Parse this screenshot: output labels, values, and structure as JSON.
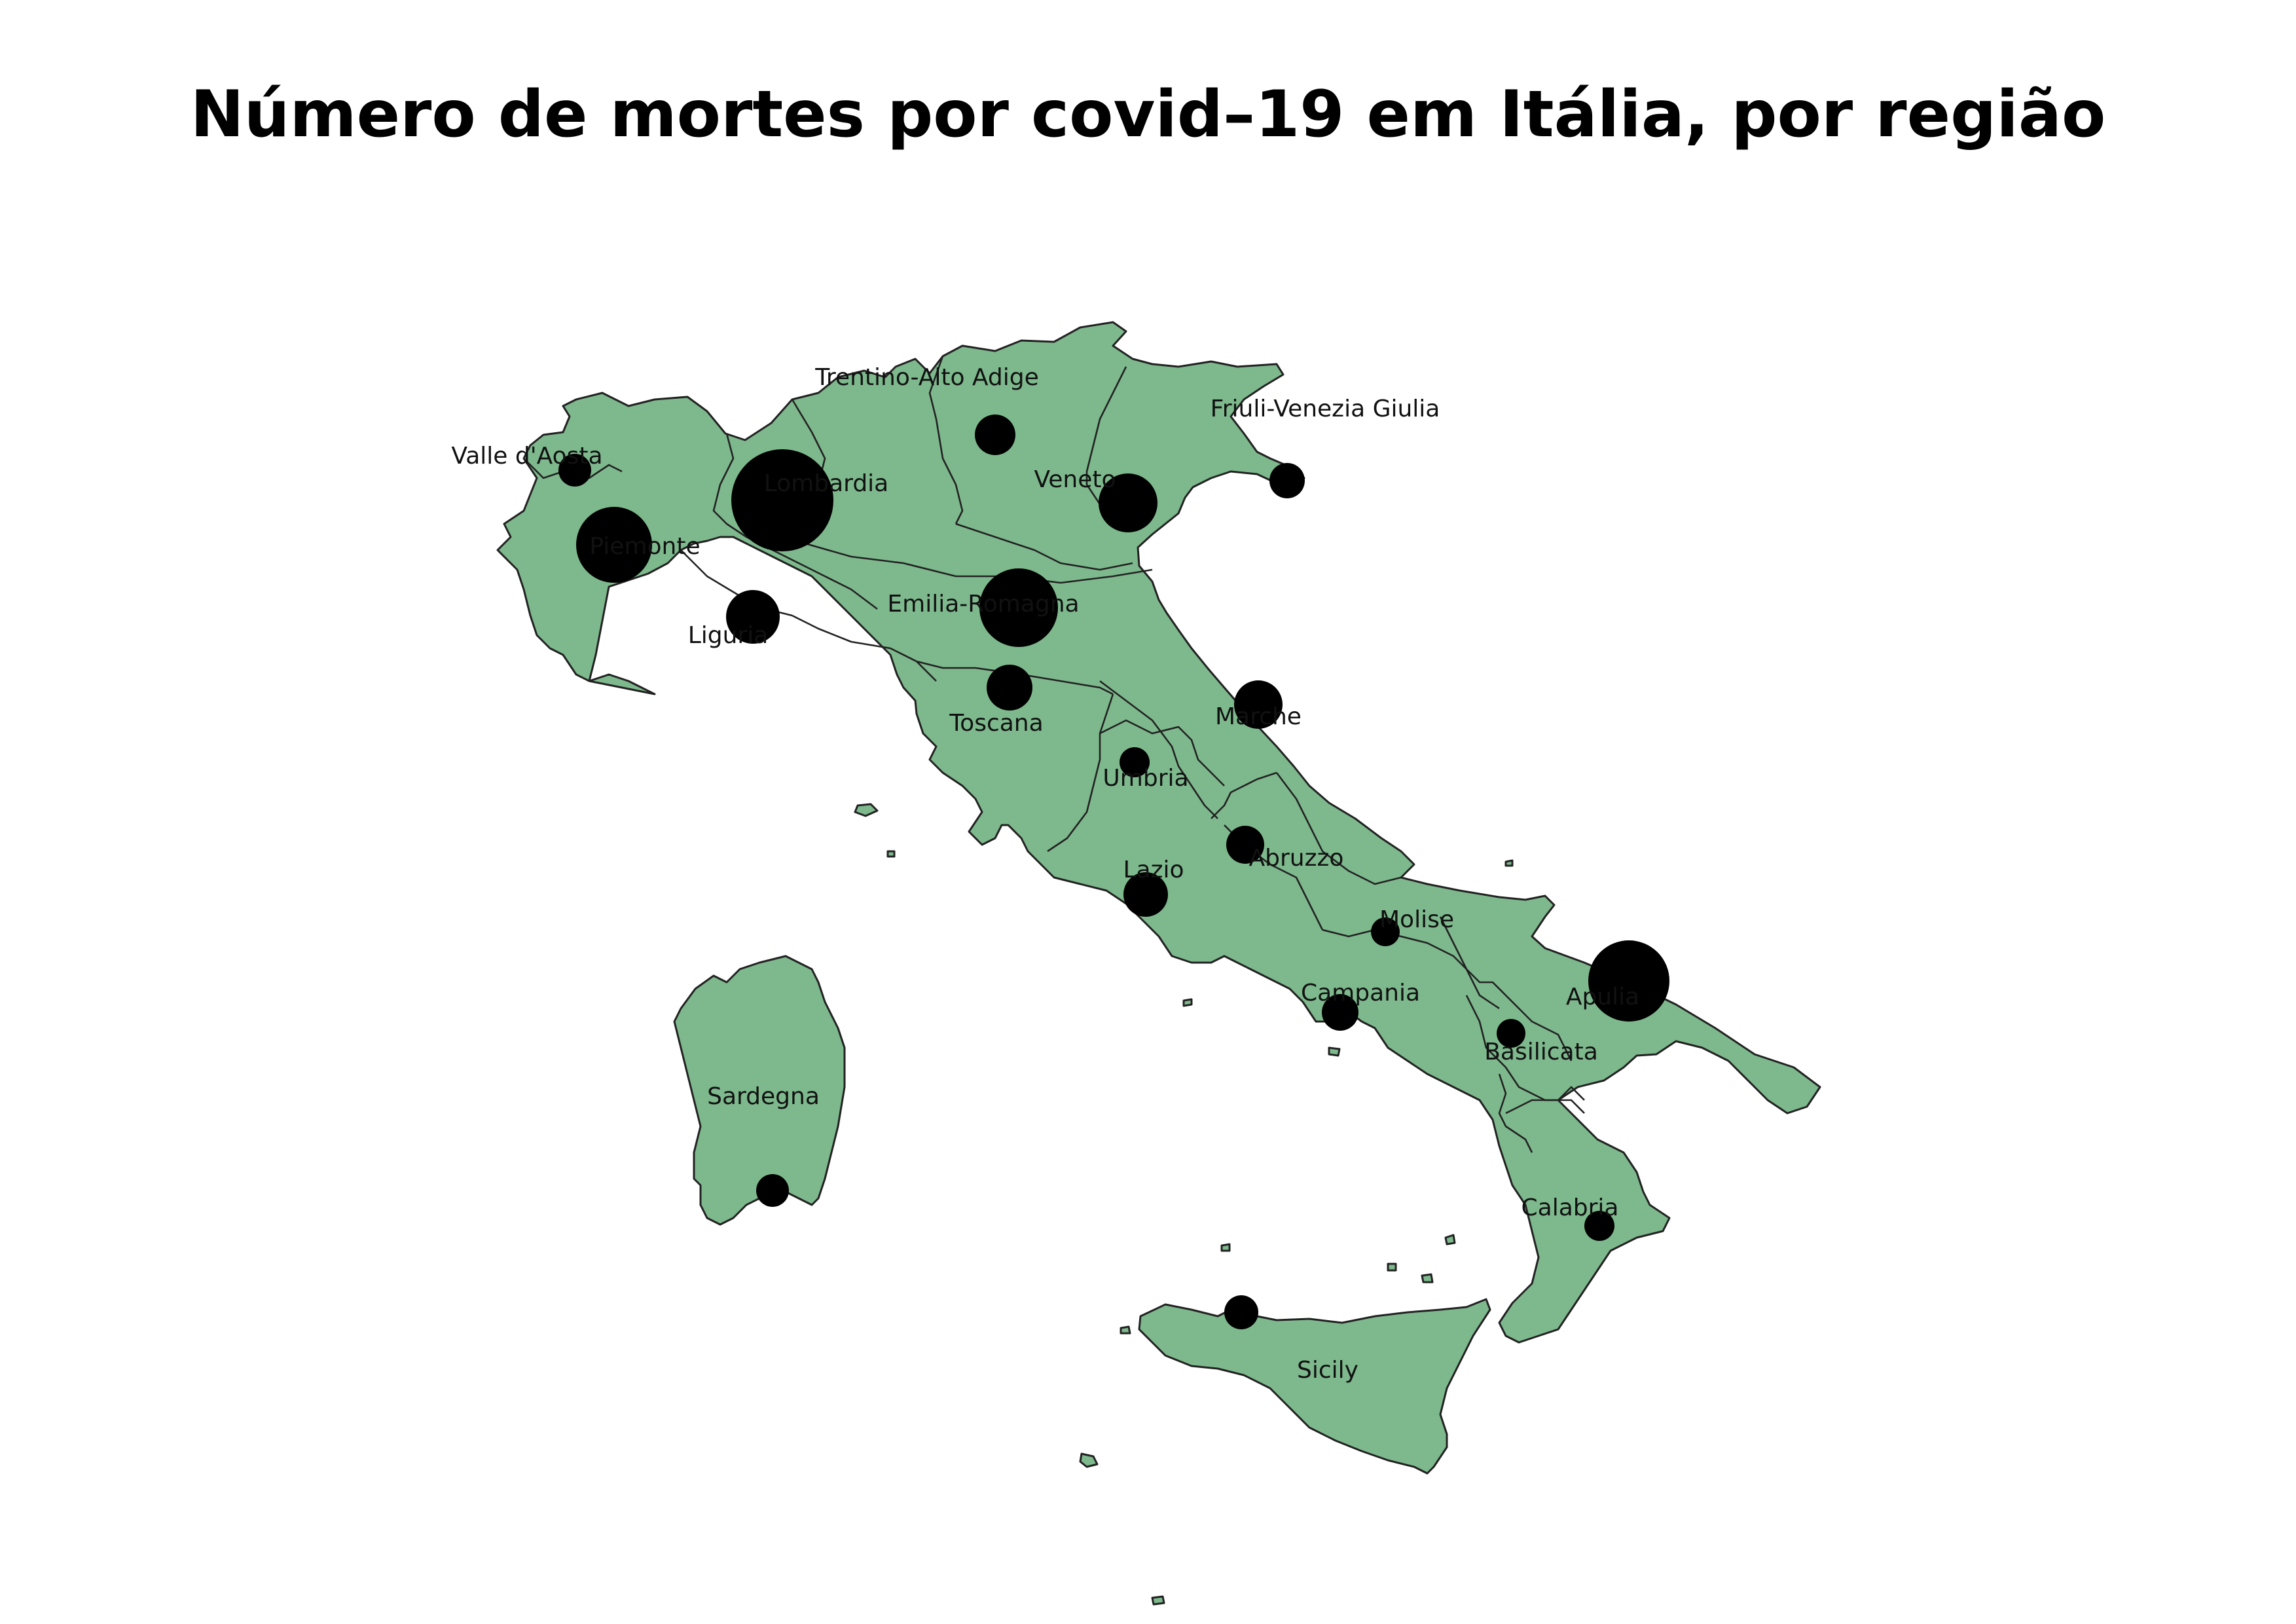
{
  "title": "Número de mortes por covid–19 em Itália, por região",
  "colors": {
    "land": "#7eb98d",
    "border": "#222222",
    "bubble": "#000000"
  },
  "regions": [
    {
      "id": "valle-d-aosta",
      "label": "Valle d'Aosta",
      "relative_size": 0.1
    },
    {
      "id": "piemonte",
      "label": "Piemonte",
      "relative_size": 0.55
    },
    {
      "id": "lombardia",
      "label": "Lombardia",
      "relative_size": 1.0
    },
    {
      "id": "liguria",
      "label": "Liguria",
      "relative_size": 0.28
    },
    {
      "id": "trentino-alto-adige",
      "label": "Trentino-Alto Adige",
      "relative_size": 0.16
    },
    {
      "id": "veneto",
      "label": "Veneto",
      "relative_size": 0.33
    },
    {
      "id": "friuli-venezia-giulia",
      "label": "Friuli-Venezia Giulia",
      "relative_size": 0.12
    },
    {
      "id": "emilia-romagna",
      "label": "Emilia-Romagna",
      "relative_size": 0.6
    },
    {
      "id": "toscana",
      "label": "Toscana",
      "relative_size": 0.2
    },
    {
      "id": "marche",
      "label": "Marche",
      "relative_size": 0.23
    },
    {
      "id": "umbria",
      "label": "Umbria",
      "relative_size": 0.09
    },
    {
      "id": "lazio",
      "label": "Lazio",
      "relative_size": 0.19
    },
    {
      "id": "abruzzo",
      "label": "Abruzzo",
      "relative_size": 0.14
    },
    {
      "id": "molise",
      "label": "Molise",
      "relative_size": 0.08
    },
    {
      "id": "campania",
      "label": "Campania",
      "relative_size": 0.13
    },
    {
      "id": "puglia",
      "label": "Apulia",
      "relative_size": 0.64
    },
    {
      "id": "basilicata",
      "label": "Basilicata",
      "relative_size": 0.08
    },
    {
      "id": "calabria",
      "label": "Calabria",
      "relative_size": 0.09
    },
    {
      "id": "sicily",
      "label": "Sicily",
      "relative_size": 0.11
    },
    {
      "id": "sardegna",
      "label": "Sardegna",
      "relative_size": 0.1
    }
  ]
}
